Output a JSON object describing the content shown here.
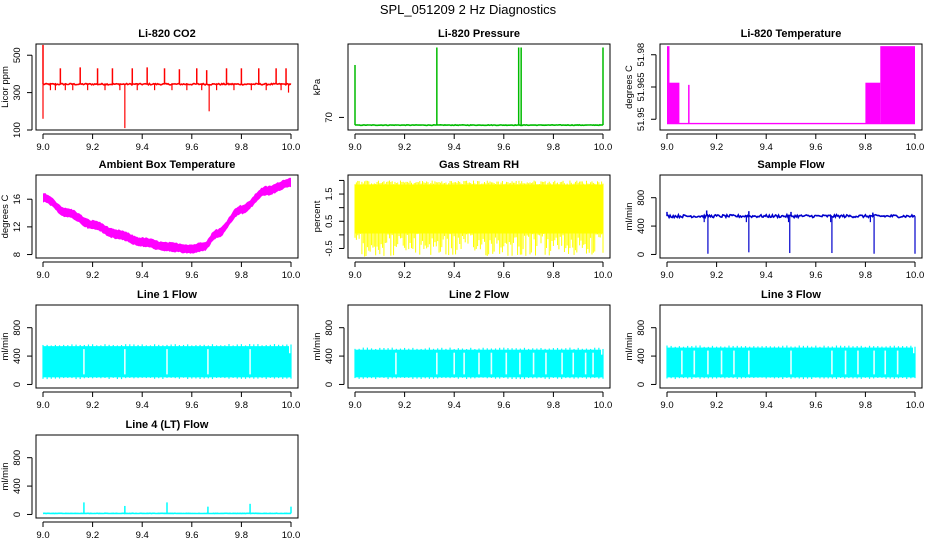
{
  "figure": {
    "title": "SPL_051209  2 Hz Diagnostics"
  },
  "chart_data": [
    {
      "type": "line",
      "title": "Li-820 CO2",
      "xlabel": "",
      "ylabel": "Licor ppm",
      "color": "#ff0000",
      "xlim": [
        9.0,
        10.0
      ],
      "ylim": [
        100,
        560
      ],
      "xticks": [
        9.0,
        9.2,
        9.4,
        9.6,
        9.8,
        10.0
      ],
      "xtick_labels": [
        "9.0",
        "9.2",
        "9.4",
        "9.6",
        "9.8",
        "10.0"
      ],
      "yticks": [
        100,
        300,
        500
      ],
      "ytick_labels": [
        "100",
        "300",
        "500"
      ],
      "series": [
        {
          "name": "CO2",
          "baseline": 345,
          "noise": 4,
          "pattern": "spikes",
          "spikes_up": [
            [
              9.0,
              555
            ],
            [
              9.07,
              430
            ],
            [
              9.15,
              435
            ],
            [
              9.22,
              430
            ],
            [
              9.28,
              430
            ],
            [
              9.36,
              430
            ],
            [
              9.42,
              435
            ],
            [
              9.49,
              430
            ],
            [
              9.55,
              425
            ],
            [
              9.62,
              430
            ],
            [
              9.66,
              420
            ],
            [
              9.74,
              430
            ],
            [
              9.8,
              430
            ],
            [
              9.87,
              430
            ],
            [
              9.94,
              430
            ],
            [
              9.98,
              430
            ]
          ],
          "spikes_down": [
            [
              9.0,
              160
            ],
            [
              9.33,
              110
            ],
            [
              9.67,
              200
            ],
            [
              9.99,
              300
            ]
          ],
          "blips": [
            9.03,
            9.05,
            9.09,
            9.12,
            9.18,
            9.25,
            9.31,
            9.38,
            9.45,
            9.52,
            9.58,
            9.64,
            9.7,
            9.77,
            9.84,
            9.9,
            9.96
          ]
        }
      ]
    },
    {
      "type": "line",
      "title": "Li-820 Pressure",
      "xlabel": "",
      "ylabel": "kPa",
      "color": "#00bb00",
      "xlim": [
        9.0,
        10.0
      ],
      "ylim": [
        68.2,
        80.5
      ],
      "xticks": [
        9.0,
        9.2,
        9.4,
        9.6,
        9.8,
        10.0
      ],
      "xtick_labels": [
        "9.0",
        "9.2",
        "9.4",
        "9.6",
        "9.8",
        "10.0"
      ],
      "yticks": [
        70
      ],
      "ytick_labels": [
        "70"
      ],
      "series": [
        {
          "name": "Pressure",
          "baseline": 68.9,
          "noise": 0.04,
          "pattern": "spikes",
          "spikes_up": [
            [
              9.0,
              77.5
            ],
            [
              9.33,
              80
            ],
            [
              9.66,
              80
            ],
            [
              9.67,
              80
            ],
            [
              10.0,
              80
            ]
          ],
          "spikes_down": [],
          "blips": []
        }
      ]
    },
    {
      "type": "line",
      "title": "Li-820 Temperature",
      "xlabel": "",
      "ylabel": "degrees C",
      "color": "#ff00ff",
      "xlim": [
        9.0,
        10.0
      ],
      "ylim": [
        51.945,
        51.985
      ],
      "xticks": [
        9.0,
        9.2,
        9.4,
        9.6,
        9.8,
        10.0
      ],
      "xtick_labels": [
        "9.0",
        "9.2",
        "9.4",
        "9.6",
        "9.8",
        "10.0"
      ],
      "yticks": [
        51.95,
        51.965,
        51.98
      ],
      "ytick_labels": [
        "51.95",
        "51.965",
        "51.98"
      ],
      "series": [
        {
          "name": "Temperature",
          "baseline": 51.948,
          "pattern": "steps",
          "blocks": [
            [
              9.0,
              9.01,
              51.948,
              51.984
            ],
            [
              9.01,
              9.05,
              51.948,
              51.967
            ],
            [
              9.085,
              9.09,
              51.948,
              51.966
            ],
            [
              9.8,
              9.86,
              51.948,
              51.967
            ],
            [
              9.86,
              10.0,
              51.948,
              51.984
            ]
          ]
        }
      ]
    },
    {
      "type": "line",
      "title": "Ambient Box Temperature",
      "xlabel": "",
      "ylabel": "degrees C",
      "color": "#ff00ff",
      "xlim": [
        9.0,
        10.0
      ],
      "ylim": [
        7.5,
        19.5
      ],
      "xticks": [
        9.0,
        9.2,
        9.4,
        9.6,
        9.8,
        10.0
      ],
      "xtick_labels": [
        "9.0",
        "9.2",
        "9.4",
        "9.6",
        "9.8",
        "10.0"
      ],
      "yticks": [
        8,
        12,
        16
      ],
      "ytick_labels": [
        "8",
        "12",
        "16"
      ],
      "series": [
        {
          "name": "Box temperature",
          "pattern": "band",
          "band_width": 1.1,
          "x": [
            9.0,
            9.1,
            9.2,
            9.3,
            9.4,
            9.5,
            9.6,
            9.65,
            9.7,
            9.8,
            9.9,
            10.0
          ],
          "values": [
            16.2,
            14.0,
            12.3,
            10.9,
            9.8,
            9.1,
            8.8,
            9.2,
            11.0,
            14.5,
            17.2,
            18.4
          ]
        }
      ]
    },
    {
      "type": "area",
      "title": "Gas Stream RH",
      "xlabel": "",
      "ylabel": "percent",
      "color": "#ffff00",
      "xlim": [
        9.0,
        10.0
      ],
      "ylim": [
        -0.85,
        2.2
      ],
      "xticks": [
        9.0,
        9.2,
        9.4,
        9.6,
        9.8,
        10.0
      ],
      "xtick_labels": [
        "9.0",
        "9.2",
        "9.4",
        "9.6",
        "9.8",
        "10.0"
      ],
      "yticks": [
        -0.5,
        0.0,
        0.5,
        1.0,
        1.5,
        2.0
      ],
      "ytick_labels": [
        "-0.5",
        "0.5",
        "1.5"
      ],
      "ytick_label_values": [
        -0.5,
        0.5,
        1.5
      ],
      "series": [
        {
          "name": "RH",
          "pattern": "noiseband",
          "low": 0.05,
          "high": 1.85,
          "low_min": -0.8,
          "high_max": 2.0
        }
      ]
    },
    {
      "type": "line",
      "title": "Sample Flow",
      "xlabel": "",
      "ylabel": "ml/min",
      "color": "#0000cc",
      "xlim": [
        9.0,
        10.0
      ],
      "ylim": [
        -50,
        1120
      ],
      "xticks": [
        9.0,
        9.2,
        9.4,
        9.6,
        9.8,
        10.0
      ],
      "xtick_labels": [
        "9.0",
        "9.2",
        "9.4",
        "9.6",
        "9.8",
        "10.0"
      ],
      "yticks": [
        0,
        400,
        800
      ],
      "ytick_labels": [
        "0",
        "400",
        "800"
      ],
      "series": [
        {
          "name": "Sample flow",
          "baseline": 540,
          "noise": 20,
          "pattern": "spikes",
          "spikes_up": [
            [
              9.0,
              600
            ],
            [
              9.16,
              620
            ],
            [
              9.33,
              610
            ],
            [
              9.5,
              600
            ],
            [
              9.83,
              590
            ]
          ],
          "spikes_down": [
            [
              9.165,
              10
            ],
            [
              9.33,
              30
            ],
            [
              9.495,
              20
            ],
            [
              9.665,
              20
            ],
            [
              9.835,
              10
            ],
            [
              10.0,
              10
            ]
          ],
          "blips": [
            9.15,
            9.32,
            9.49,
            9.66,
            9.82
          ]
        }
      ]
    },
    {
      "type": "area",
      "title": "Line 1 Flow",
      "xlabel": "",
      "ylabel": "ml/min",
      "color": "#00ffff",
      "xlim": [
        9.0,
        10.0
      ],
      "ylim": [
        -50,
        1120
      ],
      "xticks": [
        9.0,
        9.2,
        9.4,
        9.6,
        9.8,
        10.0
      ],
      "xtick_labels": [
        "9.0",
        "9.2",
        "9.4",
        "9.6",
        "9.8",
        "10.0"
      ],
      "yticks": [
        0,
        400,
        800
      ],
      "ytick_labels": [
        "0",
        "400",
        "800"
      ],
      "series": [
        {
          "name": "Line 1",
          "pattern": "block",
          "low": 100,
          "high": 540,
          "gaps": [
            9.165,
            9.33,
            9.5,
            9.665,
            9.835
          ],
          "tail": [
            9.97,
            10.0,
            440
          ]
        }
      ]
    },
    {
      "type": "area",
      "title": "Line 2 Flow",
      "xlabel": "",
      "ylabel": "ml/min",
      "color": "#00ffff",
      "xlim": [
        9.0,
        10.0
      ],
      "ylim": [
        -50,
        1120
      ],
      "xticks": [
        9.0,
        9.2,
        9.4,
        9.6,
        9.8,
        10.0
      ],
      "xtick_labels": [
        "9.0",
        "9.2",
        "9.4",
        "9.6",
        "9.8",
        "10.0"
      ],
      "yticks": [
        0,
        400,
        800
      ],
      "ytick_labels": [
        "0",
        "400",
        "800"
      ],
      "series": [
        {
          "name": "Line 2",
          "pattern": "block",
          "low": 100,
          "high": 490,
          "gaps": [
            9.165,
            9.33,
            9.4,
            9.44,
            9.5,
            9.55,
            9.61,
            9.665,
            9.72,
            9.77,
            9.835,
            9.88,
            9.93,
            9.96
          ],
          "tail": [
            9.98,
            10.0,
            420
          ]
        }
      ]
    },
    {
      "type": "area",
      "title": "Line 3 Flow",
      "xlabel": "",
      "ylabel": "ml/min",
      "color": "#00ffff",
      "xlim": [
        9.0,
        10.0
      ],
      "ylim": [
        -50,
        1120
      ],
      "xticks": [
        9.0,
        9.2,
        9.4,
        9.6,
        9.8,
        10.0
      ],
      "xtick_labels": [
        "9.0",
        "9.2",
        "9.4",
        "9.6",
        "9.8",
        "10.0"
      ],
      "yticks": [
        0,
        400,
        800
      ],
      "ytick_labels": [
        "0",
        "400",
        "800"
      ],
      "series": [
        {
          "name": "Line 3",
          "pattern": "block",
          "low": 100,
          "high": 520,
          "gaps": [
            9.06,
            9.11,
            9.165,
            9.22,
            9.27,
            9.33,
            9.5,
            9.665,
            9.72,
            9.77,
            9.835,
            9.88,
            9.93
          ],
          "tail": [
            9.98,
            10.0,
            440
          ]
        }
      ]
    },
    {
      "type": "line",
      "title": "Line 4 (LT) Flow",
      "xlabel": "",
      "ylabel": "ml/min",
      "color": "#00ffff",
      "xlim": [
        9.0,
        10.0
      ],
      "ylim": [
        -50,
        1120
      ],
      "xticks": [
        9.0,
        9.2,
        9.4,
        9.6,
        9.8,
        10.0
      ],
      "xtick_labels": [
        "9.0",
        "9.2",
        "9.4",
        "9.6",
        "9.8",
        "10.0"
      ],
      "yticks": [
        0,
        400,
        800
      ],
      "ytick_labels": [
        "0",
        "400",
        "800"
      ],
      "series": [
        {
          "name": "Line 4",
          "baseline": 15,
          "noise": 2,
          "pattern": "spikes",
          "spikes_up": [
            [
              9.165,
              170
            ],
            [
              9.33,
              120
            ],
            [
              9.5,
              170
            ],
            [
              9.665,
              110
            ],
            [
              9.835,
              150
            ],
            [
              10.0,
              110
            ]
          ],
          "spikes_down": [],
          "blips": []
        }
      ]
    }
  ]
}
